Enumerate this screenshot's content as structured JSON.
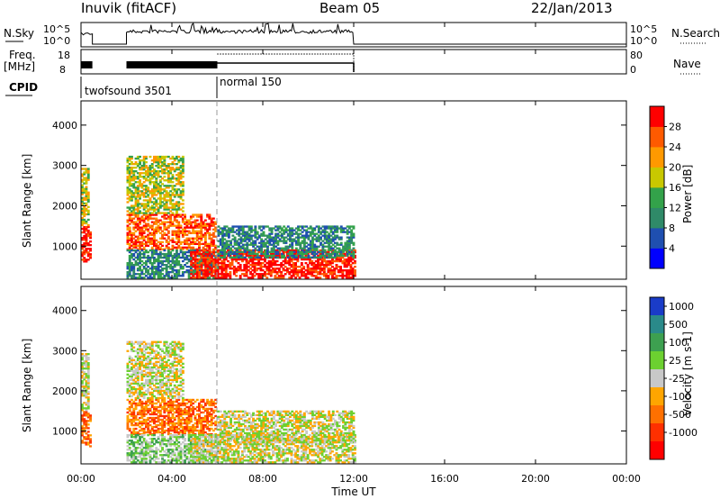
{
  "header": {
    "station": "Inuvik (fitACF)",
    "beam": "Beam 05",
    "date": "22/Jan/2013"
  },
  "strip_labels": {
    "nsky": "N.Sky",
    "nsky_ticks": [
      "10^5",
      "10^0"
    ],
    "freq": "Freq.",
    "freq_unit": "[MHz]",
    "freq_ticks": [
      "18",
      "8"
    ],
    "cpid": "CPID",
    "nsearch": "N.Search",
    "nsearch_ticks": [
      "10^5",
      "10^0"
    ],
    "nave": "Nave",
    "nave_ticks": [
      "80",
      "0"
    ],
    "cpid_modes": [
      "twofsound 3501",
      "normal 150"
    ]
  },
  "chart_data": [
    {
      "type": "heatmap",
      "panel": "power",
      "ylabel": "Slant Range [km]",
      "ylim": [
        180,
        4600
      ],
      "yticks": [
        "1000",
        "2000",
        "3000",
        "4000"
      ],
      "xlim_hours": [
        0,
        24
      ],
      "colorbar_label": "Power [dB]",
      "colorbar_ticks": [
        "4",
        "8",
        "12",
        "16",
        "20",
        "24",
        "28"
      ],
      "colors": [
        "#0000ff",
        "#1f4fb0",
        "#2f8a68",
        "#33a24a",
        "#c8c800",
        "#ff9900",
        "#ff5a00",
        "#ff0000"
      ],
      "echo_regions": [
        {
          "t0": 0.0,
          "t1": 0.4,
          "r0": 600,
          "r1": 1500,
          "level": 7
        },
        {
          "t0": 0.0,
          "t1": 0.35,
          "r0": 1500,
          "r1": 2900,
          "level": 4
        },
        {
          "t0": 2.0,
          "t1": 5.9,
          "r0": 900,
          "r1": 1800,
          "level": 6
        },
        {
          "t0": 2.0,
          "t1": 4.5,
          "r0": 1800,
          "r1": 3200,
          "level": 4
        },
        {
          "t0": 2.0,
          "t1": 6.0,
          "r0": 200,
          "r1": 900,
          "level": 2
        },
        {
          "t0": 4.8,
          "t1": 12.0,
          "r0": 200,
          "r1": 900,
          "level": 7
        },
        {
          "t0": 6.0,
          "t1": 12.0,
          "r0": 700,
          "r1": 1500,
          "level": 2
        }
      ]
    },
    {
      "type": "heatmap",
      "panel": "velocity",
      "ylabel": "Slant Range [km]",
      "ylim": [
        180,
        4600
      ],
      "yticks": [
        "1000",
        "2000",
        "3000",
        "4000"
      ],
      "xlim_hours": [
        0,
        24
      ],
      "colorbar_label": "Velocity [m s-1]",
      "colorbar_ticks": [
        "1000",
        "500",
        "100",
        "25",
        "-25",
        "-100",
        "-500",
        "-1000"
      ],
      "colors": [
        "#1a3cc8",
        "#2a8a8a",
        "#3da050",
        "#6cd030",
        "#c8c8c8",
        "#ffa500",
        "#ff7000",
        "#ff3000",
        "#ff0000"
      ],
      "echo_regions": [
        {
          "t0": 0.0,
          "t1": 0.4,
          "r0": 600,
          "r1": 1500,
          "level": 6
        },
        {
          "t0": 0.0,
          "t1": 0.35,
          "r0": 1500,
          "r1": 2900,
          "level": 4
        },
        {
          "t0": 2.0,
          "t1": 5.9,
          "r0": 900,
          "r1": 1800,
          "level": 6
        },
        {
          "t0": 2.0,
          "t1": 4.5,
          "r0": 1800,
          "r1": 3200,
          "level": 4
        },
        {
          "t0": 2.0,
          "t1": 6.0,
          "r0": 200,
          "r1": 900,
          "level": 3
        },
        {
          "t0": 4.8,
          "t1": 12.0,
          "r0": 200,
          "r1": 900,
          "level": 4
        },
        {
          "t0": 6.0,
          "t1": 12.0,
          "r0": 700,
          "r1": 1500,
          "level": 4
        }
      ]
    }
  ],
  "time_axis": {
    "ticks": [
      "00:00",
      "04:00",
      "08:00",
      "12:00",
      "16:00",
      "20:00",
      "00:00"
    ],
    "label": "Time UT"
  }
}
